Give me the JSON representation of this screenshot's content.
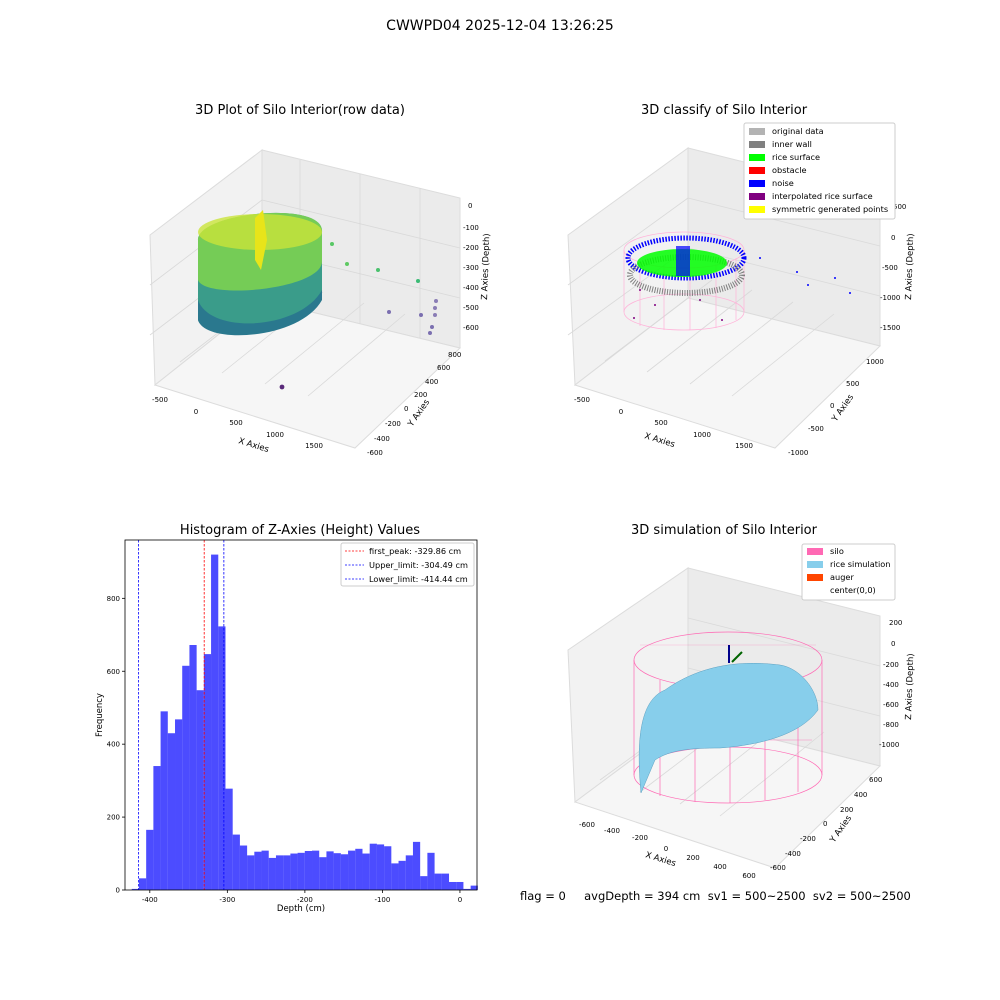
{
  "suptitle": "CWWPD04 2025-12-04 13:26:25",
  "footer": "flag = 0     avgDepth = 394 cm  sv1 = 500~2500  sv2 = 500~2500",
  "panels": {
    "raw": {
      "title": "3D Plot of Silo Interior(row data)",
      "xlabel": "X Axies",
      "ylabel": "Y Axies",
      "zlabel": "Z Axies (Depth)",
      "xticks": [
        "-500",
        "0",
        "500",
        "1000",
        "1500"
      ],
      "yticks": [
        "-600",
        "-400",
        "-200",
        "0",
        "200",
        "400",
        "600",
        "800"
      ],
      "zticks": [
        "0",
        "-100",
        "-200",
        "-300",
        "-400",
        "-500",
        "-600"
      ]
    },
    "classify": {
      "title": "3D classify of Silo Interior",
      "xlabel": "X Axies",
      "ylabel": "Y Axies",
      "zlabel": "Z Axies (Depth)",
      "xticks": [
        "-500",
        "0",
        "500",
        "1000",
        "1500"
      ],
      "yticks": [
        "-1000",
        "-500",
        "0",
        "500",
        "1000"
      ],
      "zticks": [
        "500",
        "0",
        "-500",
        "-1000",
        "-1500"
      ],
      "legend": [
        {
          "label": "original data",
          "color": "#b3b3b3"
        },
        {
          "label": "inner wall",
          "color": "#808080"
        },
        {
          "label": "rice surface",
          "color": "#00ff00"
        },
        {
          "label": "obstacle",
          "color": "#ff0000"
        },
        {
          "label": "noise",
          "color": "#0000ff"
        },
        {
          "label": "interpolated rice surface",
          "color": "#800080"
        },
        {
          "label": "symmetric generated points",
          "color": "#ffff00"
        }
      ]
    },
    "simulation": {
      "title": "3D simulation of Silo Interior",
      "xlabel": "X Axies",
      "ylabel": "Y Axies",
      "zlabel": "Z Axies (Depth)",
      "xticks": [
        "-600",
        "-400",
        "-200",
        "0",
        "200",
        "400",
        "600"
      ],
      "yticks": [
        "-600",
        "-400",
        "-200",
        "0",
        "200",
        "400",
        "600"
      ],
      "zticks": [
        "200",
        "0",
        "-200",
        "-400",
        "-600",
        "-800",
        "-1000"
      ],
      "legend": [
        {
          "label": "silo",
          "color": "#ff69b4"
        },
        {
          "label": "rice simulation",
          "color": "#87ceeb"
        },
        {
          "label": "auger",
          "color": "#ff4500"
        },
        {
          "label": "center(0,0)",
          "color": "#ffffff"
        }
      ]
    }
  },
  "chart_data": {
    "type": "bar",
    "title": "Histogram of Z-Axies (Height) Values",
    "xlabel": "Depth (cm)",
    "ylabel": "Frequency",
    "xlim": [
      -432,
      22
    ],
    "ylim": [
      0,
      960
    ],
    "xticks": [
      -400,
      -300,
      -200,
      -100,
      0
    ],
    "yticks": [
      0,
      200,
      400,
      600,
      800
    ],
    "bar_color": "#0000ff",
    "bin_width": 9.3,
    "bins": [
      {
        "x0": -423.3,
        "v": 3
      },
      {
        "x0": -414.0,
        "v": 32
      },
      {
        "x0": -404.7,
        "v": 165
      },
      {
        "x0": -395.4,
        "v": 340
      },
      {
        "x0": -386.1,
        "v": 490
      },
      {
        "x0": -376.8,
        "v": 430
      },
      {
        "x0": -367.5,
        "v": 468
      },
      {
        "x0": -358.2,
        "v": 615
      },
      {
        "x0": -348.9,
        "v": 672
      },
      {
        "x0": -339.6,
        "v": 548
      },
      {
        "x0": -330.3,
        "v": 647
      },
      {
        "x0": -321.0,
        "v": 920
      },
      {
        "x0": -311.7,
        "v": 723
      },
      {
        "x0": -302.4,
        "v": 278
      },
      {
        "x0": -293.1,
        "v": 152
      },
      {
        "x0": -283.8,
        "v": 122
      },
      {
        "x0": -274.5,
        "v": 95
      },
      {
        "x0": -265.2,
        "v": 105
      },
      {
        "x0": -255.9,
        "v": 108
      },
      {
        "x0": -246.6,
        "v": 88
      },
      {
        "x0": -237.3,
        "v": 95
      },
      {
        "x0": -228.0,
        "v": 95
      },
      {
        "x0": -218.7,
        "v": 100
      },
      {
        "x0": -209.4,
        "v": 102
      },
      {
        "x0": -200.1,
        "v": 107
      },
      {
        "x0": -190.8,
        "v": 108
      },
      {
        "x0": -181.5,
        "v": 90
      },
      {
        "x0": -172.2,
        "v": 106
      },
      {
        "x0": -162.9,
        "v": 101
      },
      {
        "x0": -153.6,
        "v": 98
      },
      {
        "x0": -144.3,
        "v": 108
      },
      {
        "x0": -135.0,
        "v": 113
      },
      {
        "x0": -125.7,
        "v": 100
      },
      {
        "x0": -116.4,
        "v": 127
      },
      {
        "x0": -107.1,
        "v": 125
      },
      {
        "x0": -97.8,
        "v": 120
      },
      {
        "x0": -88.5,
        "v": 73
      },
      {
        "x0": -79.2,
        "v": 80
      },
      {
        "x0": -69.9,
        "v": 95
      },
      {
        "x0": -60.6,
        "v": 132
      },
      {
        "x0": -51.3,
        "v": 38
      },
      {
        "x0": -42.0,
        "v": 102
      },
      {
        "x0": -32.7,
        "v": 45
      },
      {
        "x0": -23.4,
        "v": 45
      },
      {
        "x0": -14.1,
        "v": 22
      },
      {
        "x0": -4.8,
        "v": 22
      },
      {
        "x0": 4.5,
        "v": 3
      },
      {
        "x0": 13.8,
        "v": 12
      }
    ],
    "lines": [
      {
        "x": -329.86,
        "label": "first_peak: -329.86 cm",
        "color": "#ff0000"
      },
      {
        "x": -304.49,
        "label": "Upper_limit: -304.49 cm",
        "color": "#0000ff"
      },
      {
        "x": -414.44,
        "label": "Lower_limit: -414.44 cm",
        "color": "#0000ff"
      }
    ],
    "legend_position": "upper right"
  }
}
